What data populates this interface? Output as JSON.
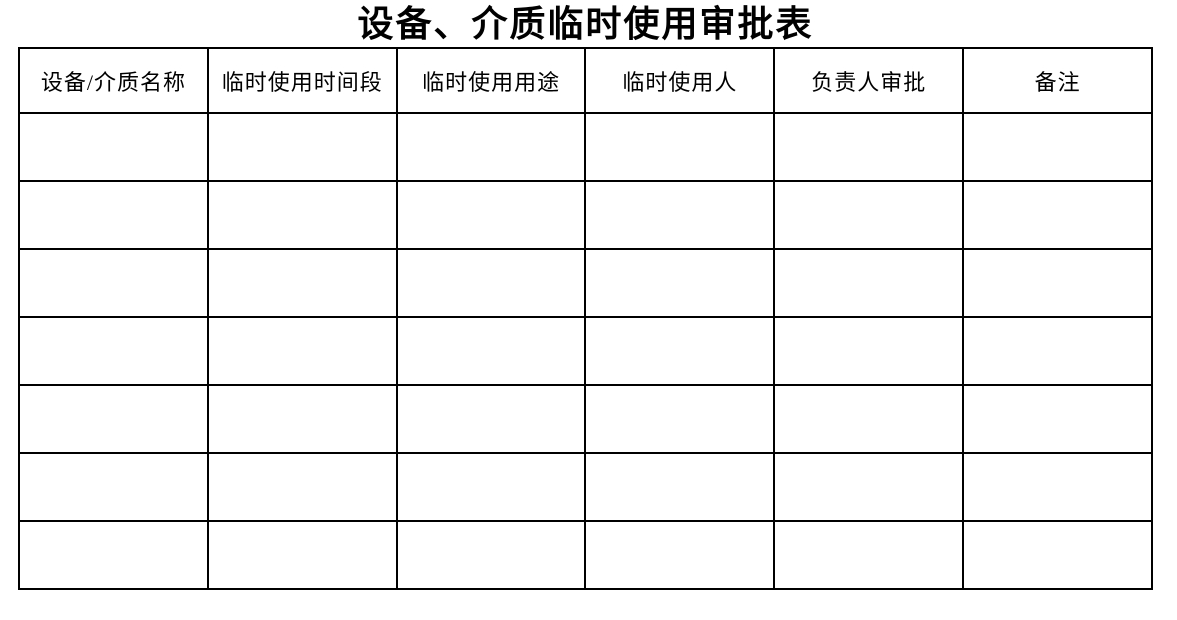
{
  "page": {
    "title": "设备、介质临时使用审批表",
    "background_color": "#ffffff",
    "border_color": "#000000",
    "text_color": "#000000"
  },
  "table": {
    "columns": [
      {
        "label": "设备/介质名称"
      },
      {
        "label": "临时使用时间段"
      },
      {
        "label": "临时使用用途"
      },
      {
        "label": "临时使用人"
      },
      {
        "label": "负责人审批"
      },
      {
        "label": "备注"
      }
    ],
    "rows": [
      [
        "",
        "",
        "",
        "",
        "",
        ""
      ],
      [
        "",
        "",
        "",
        "",
        "",
        ""
      ],
      [
        "",
        "",
        "",
        "",
        "",
        ""
      ],
      [
        "",
        "",
        "",
        "",
        "",
        ""
      ],
      [
        "",
        "",
        "",
        "",
        "",
        ""
      ],
      [
        "",
        "",
        "",
        "",
        "",
        ""
      ],
      [
        "",
        "",
        "",
        "",
        "",
        ""
      ]
    ]
  }
}
